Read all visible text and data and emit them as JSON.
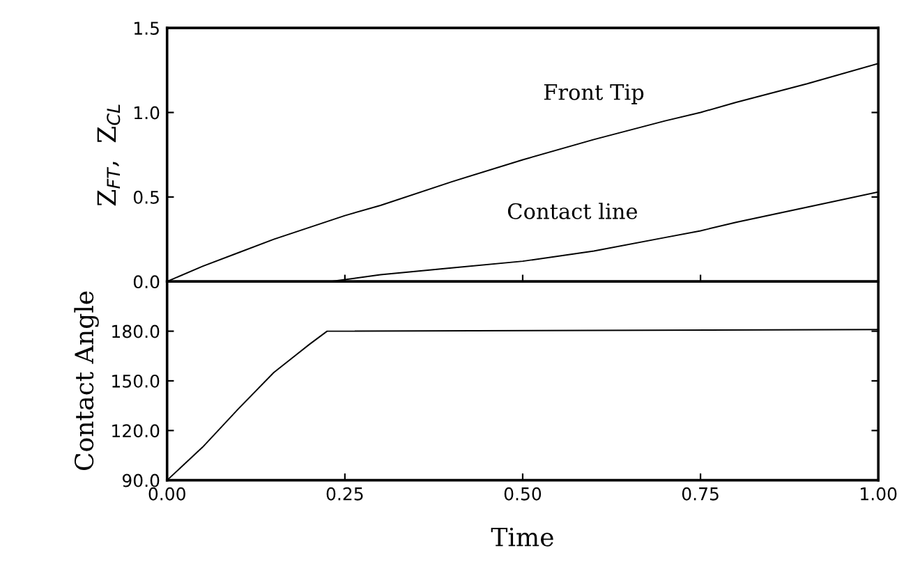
{
  "chart_data": [
    {
      "type": "line",
      "ylabel": "Z$_{FT}$,  Z$_{CL}$",
      "xlim": [
        0,
        1
      ],
      "xticks": [
        0,
        0.25,
        0.5,
        0.75,
        1
      ],
      "ylim": [
        0,
        1.5
      ],
      "yticks": [
        {
          "value": 0,
          "label": "0.0"
        },
        {
          "value": 0.5,
          "label": "0.5"
        },
        {
          "value": 1,
          "label": "1.0"
        },
        {
          "value": 1.5,
          "label": "1.5"
        }
      ],
      "tick_labels": "y",
      "grid": false,
      "legend": false,
      "series": [
        {
          "color": "#000000",
          "x": [
            0,
            0.05,
            0.1,
            0.15,
            0.2,
            0.25,
            0.3,
            0.4,
            0.5,
            0.6,
            0.7,
            0.75,
            0.8,
            0.9,
            1.0
          ],
          "values": [
            0,
            0.09,
            0.17,
            0.25,
            0.32,
            0.39,
            0.45,
            0.59,
            0.72,
            0.84,
            0.95,
            1.0,
            1.06,
            1.17,
            1.29
          ]
        },
        {
          "color": "#000000",
          "x": [
            0,
            0.1,
            0.2,
            0.23,
            0.3,
            0.4,
            0.5,
            0.6,
            0.7,
            0.75,
            0.8,
            0.9,
            1.0
          ],
          "values": [
            0,
            0,
            0,
            0,
            0.04,
            0.08,
            0.12,
            0.18,
            0.26,
            0.3,
            0.35,
            0.44,
            0.53
          ]
        }
      ],
      "annotations": [
        "Front Tip",
        "Contact line"
      ]
    },
    {
      "type": "line",
      "xlabel": "Time",
      "ylabel": "Contact Angle",
      "xlim": [
        0,
        1
      ],
      "xticks": [
        {
          "value": 0,
          "label": "0.00"
        },
        {
          "value": 0.25,
          "label": "0.25"
        },
        {
          "value": 0.5,
          "label": "0.50"
        },
        {
          "value": 0.75,
          "label": "0.75"
        },
        {
          "value": 1,
          "label": "1.00"
        }
      ],
      "ylim": [
        90,
        210
      ],
      "yticks": [
        {
          "value": 90,
          "label": "90.0"
        },
        {
          "value": 120,
          "label": "120.0"
        },
        {
          "value": 150,
          "label": "150.0"
        },
        {
          "value": 180,
          "label": "180.0"
        }
      ],
      "grid": false,
      "legend": false,
      "series": [
        {
          "color": "#000000",
          "x": [
            0,
            0.05,
            0.1,
            0.15,
            0.2,
            0.225,
            1.0
          ],
          "values": [
            90,
            110,
            133,
            155,
            172,
            180,
            181
          ]
        }
      ]
    }
  ]
}
